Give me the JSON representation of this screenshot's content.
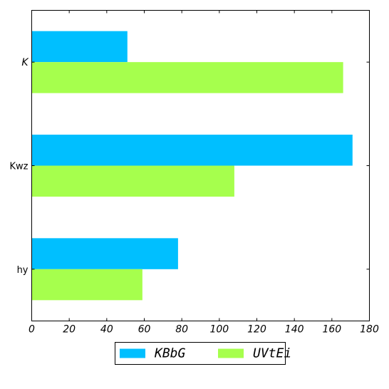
{
  "chart_data": {
    "type": "bar",
    "orientation": "horizontal",
    "categories": [
      "$K$",
      "Kwz",
      "hy"
    ],
    "series": [
      {
        "name": "$KBbG$",
        "values": [
          51,
          171,
          78
        ],
        "color": "#00bfff"
      },
      {
        "name": "$UVtEi$",
        "values": [
          166,
          108,
          59
        ],
        "color": "#a6ff4d"
      }
    ],
    "xlim": [
      0,
      180
    ],
    "xticks": [
      0,
      20,
      40,
      60,
      80,
      100,
      120,
      140,
      160,
      180
    ],
    "title": "",
    "xlabel": "",
    "ylabel": "",
    "grid": false,
    "legend": "bottom-center"
  }
}
